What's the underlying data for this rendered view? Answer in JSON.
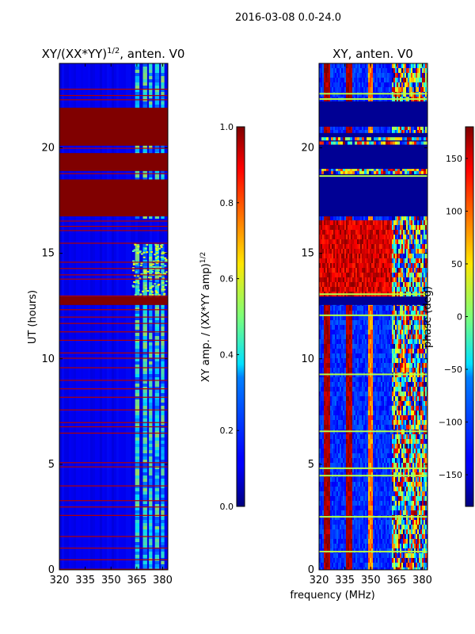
{
  "suptitle": "2016-03-08 0.0-24.0",
  "chart_data": [
    {
      "type": "heatmap",
      "title_text": "XY/(XX*YY)",
      "title_exp": "1/2",
      "title_suffix": ", anten. V0",
      "ylabel": "UT (hours)",
      "xlabel": "",
      "x_range": [
        320,
        383
      ],
      "y_range": [
        0,
        24
      ],
      "xticks": [
        "320",
        "335",
        "350",
        "365",
        "380"
      ],
      "xtick_values": [
        320,
        335,
        350,
        365,
        380
      ],
      "yticks": [
        "0",
        "5",
        "10",
        "15",
        "20"
      ],
      "ytick_values": [
        0,
        5,
        10,
        15,
        20
      ],
      "background_value": 0.05,
      "saturated_blocks": [
        [
          16.75,
          18.5
        ],
        [
          18.9,
          19.75
        ],
        [
          20.1,
          21.9
        ],
        [
          12.55,
          12.95
        ]
      ],
      "flag_lines": [
        0.05,
        0.5,
        1.05,
        1.6,
        2.6,
        3.0,
        3.3,
        4.0,
        4.9,
        5.1,
        6.5,
        6.8,
        7.0,
        7.6,
        8.2,
        8.6,
        9.0,
        9.6,
        10.05,
        10.3,
        10.9,
        11.3,
        11.7,
        12.0,
        12.35,
        13.0,
        13.8,
        14.0,
        14.3,
        14.6,
        15.5,
        16.1,
        16.3,
        16.55,
        18.8,
        20.0,
        22.3,
        22.5,
        22.8
      ],
      "bright_bands": [
        [
          364,
          366.5
        ],
        [
          368.5,
          371
        ],
        [
          372,
          374
        ],
        [
          375.5,
          378
        ],
        [
          379,
          381
        ]
      ],
      "colorbar": {
        "label_text": "XY amp. / (XX*YY amp)",
        "label_exp": "1/2",
        "range": [
          0.0,
          1.0
        ],
        "ticks": [
          "0.0",
          "0.2",
          "0.4",
          "0.6",
          "0.8",
          "1.0"
        ],
        "tick_values": [
          0.0,
          0.2,
          0.4,
          0.6,
          0.8,
          1.0
        ]
      }
    },
    {
      "type": "heatmap",
      "title_text": "XY, anten. V0",
      "ylabel": "",
      "xlabel": "frequency (MHz)",
      "x_range": [
        320,
        383
      ],
      "y_range": [
        0,
        24
      ],
      "xticks": [
        "320",
        "335",
        "350",
        "365",
        "380"
      ],
      "xtick_values": [
        320,
        335,
        350,
        365,
        380
      ],
      "yticks": [
        "0",
        "5",
        "10",
        "15",
        "20"
      ],
      "ytick_values": [
        0,
        5,
        10,
        15,
        20
      ],
      "background_value": -175,
      "masked_blocks": [
        [
          16.75,
          20.7
        ],
        [
          21.0,
          22.2
        ],
        [
          12.55,
          12.95
        ]
      ],
      "flag_lines": [
        0.9,
        2.55,
        4.5,
        4.85,
        6.6,
        9.3,
        12.1,
        13.1,
        18.7,
        22.35,
        22.6
      ],
      "colorbar": {
        "label_text": "phase (deg)",
        "range": [
          -180,
          180
        ],
        "ticks": [
          "−150",
          "−100",
          "−50",
          "0",
          "50",
          "100",
          "150"
        ],
        "tick_values": [
          -150,
          -100,
          -50,
          0,
          50,
          100,
          150
        ]
      }
    }
  ]
}
